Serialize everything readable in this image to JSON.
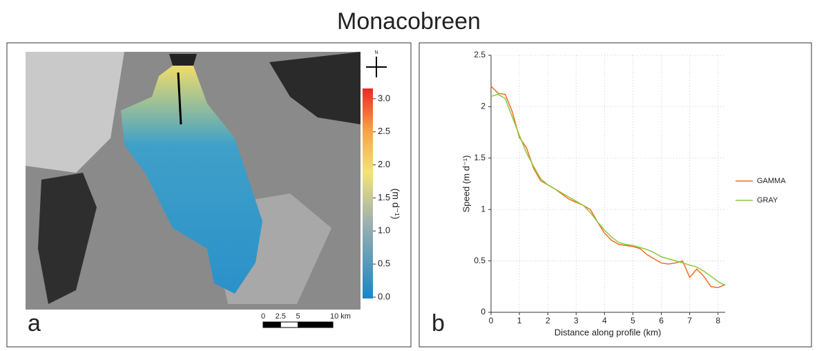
{
  "title": "Monacobreen",
  "chart_data": [
    {
      "type": "map",
      "label": "a",
      "north": "N",
      "colorbar_label": "(m d⁻¹)",
      "colorbar_ticks": [
        {
          "value": 0,
          "label": "0.0"
        },
        0.5,
        {
          "value": 1,
          "label": "1.0"
        },
        1.5,
        {
          "value": 2,
          "label": "2.0"
        },
        2.5,
        {
          "value": 3,
          "label": "3.0"
        }
      ],
      "scalebar_ticks": [
        0,
        2.5,
        5,
        {
          "value": 10,
          "label": "10 km"
        }
      ]
    },
    {
      "type": "line",
      "label": "b",
      "xlabel": "Distance along profile (km)",
      "ylabel": "Speed (m d⁻¹)",
      "x": [
        0,
        0.25,
        0.5,
        0.75,
        1,
        1.25,
        1.5,
        1.75,
        2,
        2.25,
        2.5,
        2.75,
        3,
        3.25,
        3.5,
        3.75,
        4,
        4.25,
        4.5,
        4.75,
        5,
        5.25,
        5.5,
        5.75,
        6,
        6.25,
        6.5,
        6.75,
        7,
        7.25,
        7.5,
        7.75,
        8,
        8.25
      ],
      "series": [
        {
          "name": "GAMMA",
          "color": "#f26b1d",
          "values": [
            2.2,
            2.13,
            2.12,
            1.95,
            1.7,
            1.6,
            1.4,
            1.28,
            1.24,
            1.2,
            1.15,
            1.1,
            1.07,
            1.04,
            1.0,
            0.88,
            0.77,
            0.7,
            0.66,
            0.65,
            0.64,
            0.62,
            0.56,
            0.52,
            0.48,
            0.47,
            0.48,
            0.5,
            0.34,
            0.42,
            0.35,
            0.25,
            0.24,
            0.27
          ]
        },
        {
          "name": "GRAY",
          "color": "#8cc63f",
          "values": [
            2.1,
            2.12,
            2.08,
            1.9,
            1.72,
            1.55,
            1.42,
            1.3,
            1.24,
            1.2,
            1.16,
            1.12,
            1.08,
            1.04,
            0.97,
            0.88,
            0.8,
            0.73,
            0.68,
            0.66,
            0.65,
            0.63,
            0.61,
            0.58,
            0.54,
            0.52,
            0.5,
            0.48,
            0.46,
            0.44,
            0.4,
            0.35,
            0.3,
            0.26
          ]
        }
      ],
      "xlim": [
        0,
        8.25
      ],
      "ylim": [
        0,
        2.5
      ],
      "xticks": [
        0,
        1,
        2,
        3,
        4,
        5,
        6,
        7,
        8
      ],
      "yticks": [
        0,
        0.5,
        1,
        1.5,
        2,
        2.5
      ],
      "grid": true,
      "legend": "right"
    }
  ]
}
